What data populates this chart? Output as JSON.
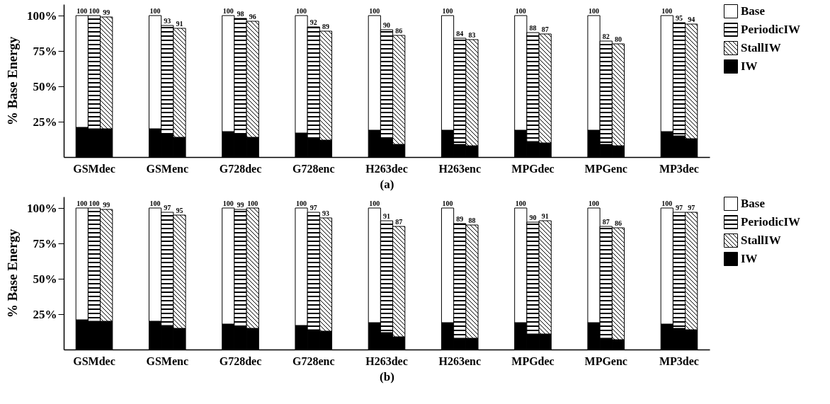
{
  "chart_data": [
    {
      "type": "bar",
      "stacked": true,
      "xlabel": "(a)",
      "ylabel": "% Base Energy",
      "legend": "right",
      "ylim": [
        0,
        108
      ],
      "yticks": [
        {
          "value": 25,
          "label": "25%"
        },
        {
          "value": 50,
          "label": "50%"
        },
        {
          "value": 75,
          "label": "75%"
        },
        {
          "value": 100,
          "label": "100%"
        }
      ],
      "categories": [
        null,
        "GSMdec",
        null,
        null,
        null,
        null,
        null,
        "GSMenc",
        null,
        null,
        null,
        null,
        null,
        "G728dec",
        null,
        null,
        null,
        null,
        null,
        "G728enc",
        null,
        null,
        null,
        null,
        null,
        "H263dec",
        null,
        null,
        null,
        null,
        null,
        "H263enc",
        null,
        null,
        null,
        null,
        null,
        "MPGdec",
        null,
        null,
        null,
        null,
        null,
        "MPGenc",
        null,
        null,
        null,
        null,
        null,
        "MP3dec",
        null
      ],
      "series": [
        {
          "name": "IW",
          "color": "#000000",
          "values": [
            21,
            20,
            20,
            null,
            null,
            null,
            20,
            16,
            14,
            null,
            null,
            null,
            18,
            16,
            14,
            null,
            null,
            null,
            17,
            13,
            12,
            null,
            null,
            null,
            19,
            13,
            9,
            null,
            null,
            null,
            19,
            9,
            8,
            null,
            null,
            null,
            19,
            11,
            10,
            null,
            null,
            null,
            19,
            9,
            8,
            null,
            null,
            null,
            18,
            15,
            13
          ]
        },
        {
          "name": "Base",
          "color": "#ffffff",
          "values": [
            79,
            null,
            null,
            null,
            null,
            null,
            80,
            null,
            null,
            null,
            null,
            null,
            82,
            null,
            null,
            null,
            null,
            null,
            83,
            null,
            null,
            null,
            null,
            null,
            81,
            null,
            null,
            null,
            null,
            null,
            81,
            null,
            null,
            null,
            null,
            null,
            81,
            null,
            null,
            null,
            null,
            null,
            81,
            null,
            null,
            null,
            null,
            null,
            82,
            null,
            null
          ]
        },
        {
          "name": "PeriodicIW",
          "color": "#000000",
          "values": [
            null,
            80,
            null,
            null,
            null,
            null,
            null,
            77,
            null,
            null,
            null,
            null,
            null,
            82,
            null,
            null,
            null,
            null,
            null,
            79,
            null,
            null,
            null,
            null,
            null,
            77,
            null,
            null,
            null,
            null,
            null,
            75,
            null,
            null,
            null,
            null,
            null,
            77,
            null,
            null,
            null,
            null,
            null,
            73,
            null,
            null,
            null,
            null,
            null,
            80,
            null
          ]
        },
        {
          "name": "StallIW",
          "color": "#000000",
          "values": [
            null,
            null,
            79,
            null,
            null,
            null,
            null,
            null,
            77,
            null,
            null,
            null,
            null,
            null,
            82,
            null,
            null,
            null,
            null,
            null,
            77,
            null,
            null,
            null,
            null,
            null,
            77,
            null,
            null,
            null,
            null,
            null,
            75,
            null,
            null,
            null,
            null,
            null,
            77,
            null,
            null,
            null,
            null,
            null,
            72,
            null,
            null,
            null,
            null,
            null,
            81
          ]
        }
      ],
      "totals": [
        "100",
        "100",
        "99",
        null,
        null,
        null,
        "100",
        "93",
        "91",
        null,
        null,
        null,
        "100",
        "98",
        "96",
        null,
        null,
        null,
        "100",
        "92",
        "89",
        null,
        null,
        null,
        "100",
        "90",
        "86",
        null,
        null,
        null,
        "100",
        "84",
        "83",
        null,
        null,
        null,
        "100",
        "88",
        "87",
        null,
        null,
        null,
        "100",
        "82",
        "80",
        null,
        null,
        null,
        "100",
        "95",
        "94"
      ]
    },
    {
      "type": "bar",
      "stacked": true,
      "xlabel": "(b)",
      "ylabel": "% Base Energy",
      "legend": "right",
      "ylim": [
        0,
        108
      ],
      "yticks": [
        {
          "value": 25,
          "label": "25%"
        },
        {
          "value": 50,
          "label": "50%"
        },
        {
          "value": 75,
          "label": "75%"
        },
        {
          "value": 100,
          "label": "100%"
        }
      ],
      "categories": [
        null,
        "GSMdec",
        null,
        null,
        null,
        null,
        null,
        "GSMenc",
        null,
        null,
        null,
        null,
        null,
        "G728dec",
        null,
        null,
        null,
        null,
        null,
        "G728enc",
        null,
        null,
        null,
        null,
        null,
        "H263dec",
        null,
        null,
        null,
        null,
        null,
        "H263enc",
        null,
        null,
        null,
        null,
        null,
        "MPGdec",
        null,
        null,
        null,
        null,
        null,
        "MPGenc",
        null,
        null,
        null,
        null,
        null,
        "MP3dec",
        null
      ],
      "series": [
        {
          "name": "IW",
          "color": "#000000",
          "values": [
            21,
            20,
            20,
            null,
            null,
            null,
            20,
            17,
            15,
            null,
            null,
            null,
            18,
            16,
            15,
            null,
            null,
            null,
            17,
            14,
            13,
            null,
            null,
            null,
            19,
            12,
            9,
            null,
            null,
            null,
            19,
            8,
            8,
            null,
            null,
            null,
            19,
            11,
            11,
            null,
            null,
            null,
            19,
            8,
            7,
            null,
            null,
            null,
            18,
            15,
            14
          ]
        },
        {
          "name": "Base",
          "color": "#ffffff",
          "values": [
            79,
            null,
            null,
            null,
            null,
            null,
            80,
            null,
            null,
            null,
            null,
            null,
            82,
            null,
            null,
            null,
            null,
            null,
            83,
            null,
            null,
            null,
            null,
            null,
            81,
            null,
            null,
            null,
            null,
            null,
            81,
            null,
            null,
            null,
            null,
            null,
            81,
            null,
            null,
            null,
            null,
            null,
            81,
            null,
            null,
            null,
            null,
            null,
            82,
            null,
            null
          ]
        },
        {
          "name": "PeriodicIW",
          "color": "#000000",
          "values": [
            null,
            80,
            null,
            null,
            null,
            null,
            null,
            80,
            null,
            null,
            null,
            null,
            null,
            83,
            null,
            null,
            null,
            null,
            null,
            83,
            null,
            null,
            null,
            null,
            null,
            79,
            null,
            null,
            null,
            null,
            null,
            81,
            null,
            null,
            null,
            null,
            null,
            79,
            null,
            null,
            null,
            null,
            null,
            79,
            null,
            null,
            null,
            null,
            null,
            82,
            null
          ]
        },
        {
          "name": "StallIW",
          "color": "#000000",
          "values": [
            null,
            null,
            79,
            null,
            null,
            null,
            null,
            null,
            80,
            null,
            null,
            null,
            null,
            null,
            85,
            null,
            null,
            null,
            null,
            null,
            80,
            null,
            null,
            null,
            null,
            null,
            78,
            null,
            null,
            null,
            null,
            null,
            80,
            null,
            null,
            null,
            null,
            null,
            80,
            null,
            null,
            null,
            null,
            null,
            79,
            null,
            null,
            null,
            null,
            null,
            83
          ]
        }
      ],
      "totals": [
        "100",
        "100",
        "99",
        null,
        null,
        null,
        "100",
        "97",
        "95",
        null,
        null,
        null,
        "100",
        "99",
        "100",
        null,
        null,
        null,
        "100",
        "97",
        "93",
        null,
        null,
        null,
        "100",
        "91",
        "87",
        null,
        null,
        null,
        "100",
        "89",
        "88",
        null,
        null,
        null,
        "100",
        "90",
        "91",
        null,
        null,
        null,
        "100",
        "87",
        "86",
        null,
        null,
        null,
        "100",
        "97",
        "97"
      ]
    }
  ]
}
